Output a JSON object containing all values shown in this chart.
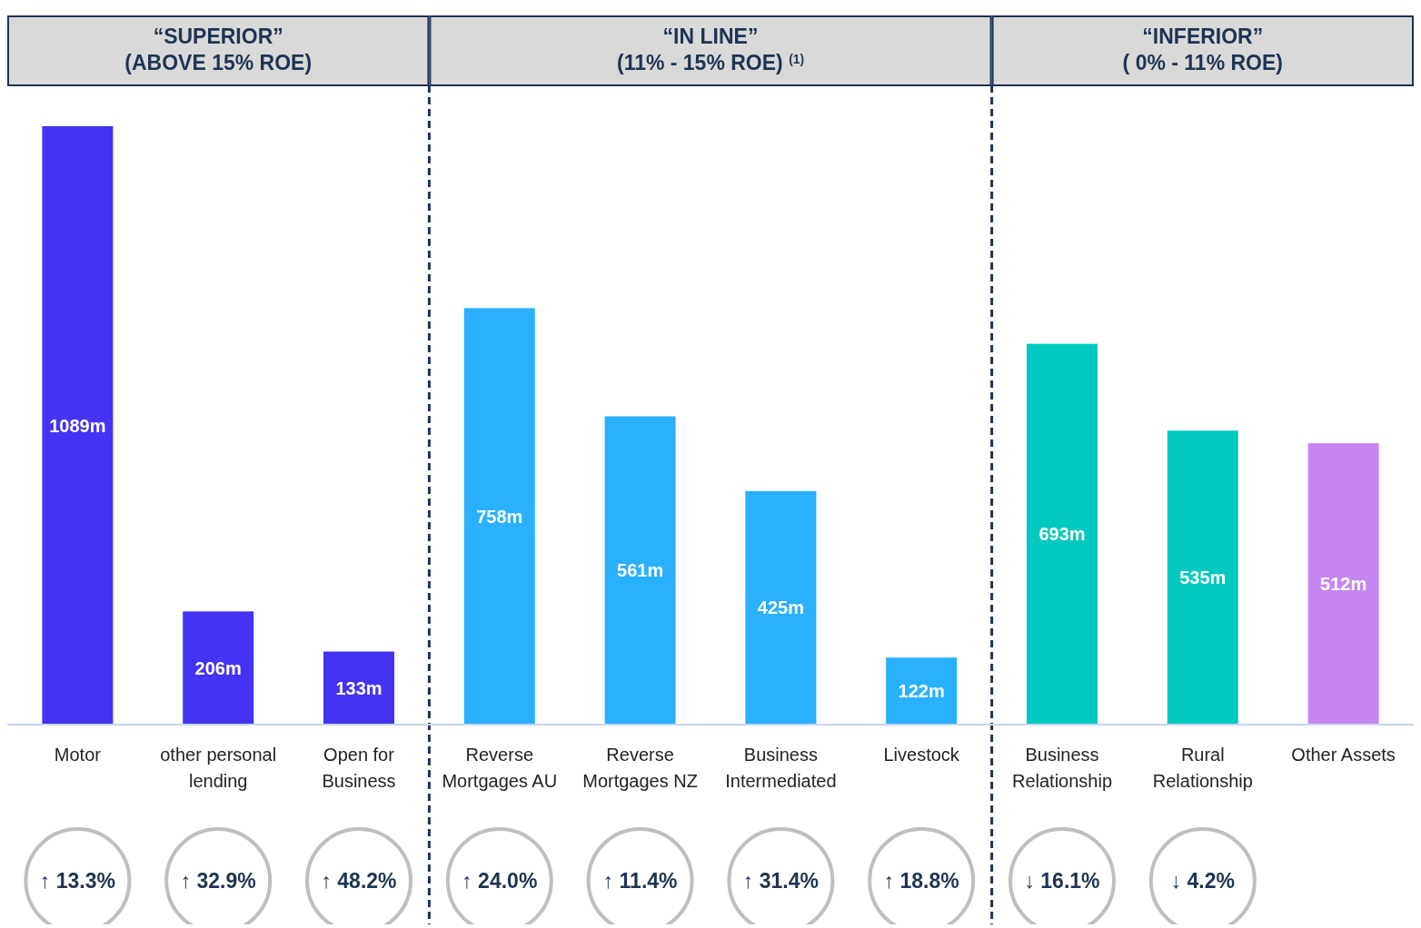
{
  "chart_data": {
    "type": "bar",
    "categories": [
      "Motor",
      "other personal lending",
      "Open for Business",
      "Reverse Mortgages AU",
      "Reverse Mortgages NZ",
      "Business Intermediated",
      "Livestock",
      "Business Relationship",
      "Rural Relationship",
      "Other Assets"
    ],
    "values": [
      1089,
      206,
      133,
      758,
      561,
      425,
      122,
      693,
      535,
      512
    ],
    "colors": [
      "#4433f2",
      "#4433f2",
      "#4433f2",
      "#29b0ff",
      "#29b0ff",
      "#29b0ff",
      "#29b0ff",
      "#00c9c0",
      "#00c9c0",
      "#c686f0"
    ],
    "value_labels": [
      "1089m",
      "206m",
      "133m",
      "758m",
      "561m",
      "425m",
      "122m",
      "693m",
      "535m",
      "512m"
    ],
    "annotations": [
      "“SUPERIOR”\n(ABOVE 15% ROE)",
      "“IN LINE”\n(11% - 15% ROE) $^{(1)}$",
      "“INFERIOR”\n( 0% - 11% ROE)",
      "↑ 13.3%",
      "↑ 32.9%",
      "↑ 48.2%",
      "↑ 24.0%",
      "↑ 11.4%",
      "↑ 31.4%",
      "↑ 18.8%",
      "↓ 16.1%",
      "↓ 4.2%"
    ]
  }
}
